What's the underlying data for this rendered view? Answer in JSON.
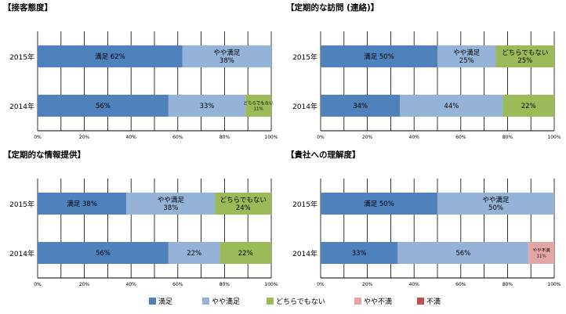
{
  "chart_data": [
    {
      "type": "bar",
      "stacked": true,
      "orientation": "horizontal",
      "title": "【接客態度】",
      "categories": [
        "2015年",
        "2014年"
      ],
      "series": [
        {
          "name": "満足",
          "values": [
            62,
            56
          ]
        },
        {
          "name": "やや満足",
          "values": [
            38,
            33
          ]
        },
        {
          "name": "どちらでもない",
          "values": [
            0,
            11
          ]
        },
        {
          "name": "やや不満",
          "values": [
            0,
            0
          ]
        },
        {
          "name": "不満",
          "values": [
            0,
            0
          ]
        }
      ],
      "labels": [
        [
          [
            "満足 62%"
          ],
          [
            "やや満足",
            "38%"
          ],
          [],
          [],
          []
        ],
        [
          [
            "56%"
          ],
          [
            "33%"
          ],
          [
            "どちらでもない",
            "11%"
          ],
          [],
          []
        ]
      ],
      "xlim": [
        0,
        100
      ],
      "xticks": [
        "0%",
        "20%",
        "40%",
        "60%",
        "80%",
        "100%"
      ],
      "grid": true
    },
    {
      "type": "bar",
      "stacked": true,
      "orientation": "horizontal",
      "title": "【定期的な訪問 (連絡)】",
      "categories": [
        "2015年",
        "2014年"
      ],
      "series": [
        {
          "name": "満足",
          "values": [
            50,
            34
          ]
        },
        {
          "name": "やや満足",
          "values": [
            25,
            44
          ]
        },
        {
          "name": "どちらでもない",
          "values": [
            25,
            22
          ]
        },
        {
          "name": "やや不満",
          "values": [
            0,
            0
          ]
        },
        {
          "name": "不満",
          "values": [
            0,
            0
          ]
        }
      ],
      "labels": [
        [
          [
            "満足 50%"
          ],
          [
            "やや満足",
            "25%"
          ],
          [
            "どちらでもない",
            "25%"
          ],
          [],
          []
        ],
        [
          [
            "34%"
          ],
          [
            "44%"
          ],
          [
            "22%"
          ],
          [],
          []
        ]
      ],
      "xlim": [
        0,
        100
      ],
      "xticks": [
        "0%",
        "20%",
        "40%",
        "60%",
        "80%",
        "100%"
      ],
      "grid": true
    },
    {
      "type": "bar",
      "stacked": true,
      "orientation": "horizontal",
      "title": "【定期的な情報提供】",
      "categories": [
        "2015年",
        "2014年"
      ],
      "series": [
        {
          "name": "満足",
          "values": [
            38,
            56
          ]
        },
        {
          "name": "やや満足",
          "values": [
            38,
            22
          ]
        },
        {
          "name": "どちらでもない",
          "values": [
            24,
            22
          ]
        },
        {
          "name": "やや不満",
          "values": [
            0,
            0
          ]
        },
        {
          "name": "不満",
          "values": [
            0,
            0
          ]
        }
      ],
      "labels": [
        [
          [
            "満足 38%"
          ],
          [
            "やや満足",
            "38%"
          ],
          [
            "どちらでもない",
            "24%"
          ],
          [],
          []
        ],
        [
          [
            "56%"
          ],
          [
            "22%"
          ],
          [
            "22%"
          ],
          [],
          []
        ]
      ],
      "xlim": [
        0,
        100
      ],
      "xticks": [
        "0%",
        "20%",
        "40%",
        "60%",
        "80%",
        "100%"
      ],
      "grid": true
    },
    {
      "type": "bar",
      "stacked": true,
      "orientation": "horizontal",
      "title": "【貴社への理解度】",
      "categories": [
        "2015年",
        "2014年"
      ],
      "series": [
        {
          "name": "満足",
          "values": [
            50,
            33
          ]
        },
        {
          "name": "やや満足",
          "values": [
            50,
            56
          ]
        },
        {
          "name": "どちらでもない",
          "values": [
            0,
            0
          ]
        },
        {
          "name": "やや不満",
          "values": [
            0,
            11
          ]
        },
        {
          "name": "不満",
          "values": [
            0,
            0
          ]
        }
      ],
      "labels": [
        [
          [
            "満足 50%"
          ],
          [
            "やや満足",
            "50%"
          ],
          [],
          [],
          []
        ],
        [
          [
            "33%"
          ],
          [
            "56%"
          ],
          [],
          [
            "やや不満",
            "11%"
          ],
          []
        ]
      ],
      "xlim": [
        0,
        100
      ],
      "xticks": [
        "0%",
        "20%",
        "40%",
        "60%",
        "80%",
        "100%"
      ],
      "grid": true
    }
  ],
  "legend": {
    "placement": "bottom",
    "items": [
      {
        "label": "満足",
        "color": "#4f81bd"
      },
      {
        "label": "やや満足",
        "color": "#95b3d7"
      },
      {
        "label": "どちらでもない",
        "color": "#9bbb59"
      },
      {
        "label": "やや不満",
        "color": "#e6a5a5"
      },
      {
        "label": "不満",
        "color": "#c0504d"
      }
    ]
  }
}
